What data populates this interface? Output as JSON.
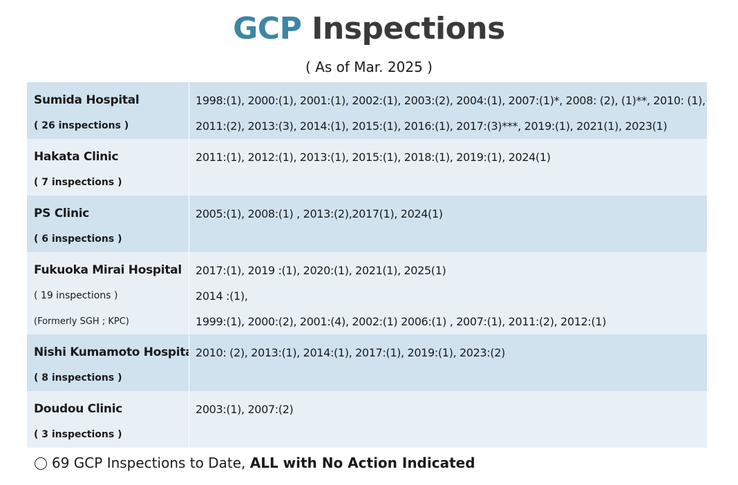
{
  "header": {
    "title_accent": "GCP",
    "title_rest": " Inspections",
    "subtitle": "( As of Mar. 2025 )"
  },
  "colors": {
    "accent": "#3d86a4",
    "row_dark": "#cfe2ee",
    "row_light": "#e8f0f6"
  },
  "sites": [
    {
      "name": "Sumida Hospital",
      "count": "( 26 inspections )",
      "lines": [
        "1998:(1), 2000:(1), 2001:(1), 2002:(1), 2003:(2), 2004:(1), 2007:(1)*, 2008: (2), (1)**, 2010: (1),",
        "2011:(2), 2013:(3), 2014:(1), 2015:(1), 2016:(1), 2017:(3)***, 2019:(1),  2021(1), 2023(1)"
      ]
    },
    {
      "name": "Hakata Clinic",
      "count": "( 7 inspections )",
      "lines": [
        "2011:(1), 2012:(1), 2013:(1), 2015:(1), 2018:(1), 2019:(1), 2024(1)"
      ]
    },
    {
      "name": "PS Clinic",
      "count": "( 6 inspections )",
      "lines": [
        "2005:(1), 2008:(1) , 2013:(2),2017(1), 2024(1)"
      ]
    },
    {
      "name": "Fukuoka Mirai Hospital",
      "count": "( 19 inspections )",
      "note": "(Formerly SGH ; KPC)",
      "lines": [
        "2017:(1), 2019 :(1), 2020:(1), 2021(1), 2025(1)",
        "2014 :(1),",
        "1999:(1),  2000:(2),  2001:(4),  2002:(1) 2006:(1) , 2007:(1), 2011:(2), 2012:(1)"
      ]
    },
    {
      "name": "Nishi Kumamoto Hospital",
      "count": "( 8 inspections )",
      "lines": [
        "2010: (2), 2013:(1), 2014:(1), 2017:(1), 2019:(1), 2023:(2)"
      ]
    },
    {
      "name": "Doudou Clinic",
      "count": "( 3 inspections )",
      "lines": [
        "2003:(1), 2007:(2)"
      ]
    }
  ],
  "footer": {
    "text_plain": "69 GCP Inspections to Date, ",
    "text_bold": "ALL with No Action Indicated"
  }
}
